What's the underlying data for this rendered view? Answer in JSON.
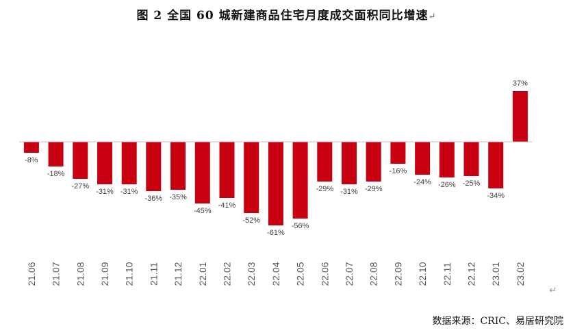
{
  "header": {
    "title": "图 2   全国 60 城新建商品住宅月度成交面积同比增速",
    "title_mark": "↵"
  },
  "footer": {
    "source": "数据来源：CRIC、易居研究院",
    "return_mark": "↵"
  },
  "colors": {
    "bar": "#C8000F",
    "axis": "#BFBFBF"
  },
  "chart_data": {
    "type": "bar",
    "categories": [
      "21.06",
      "21.07",
      "21.08",
      "21.09",
      "21.10",
      "21.11",
      "21.12",
      "22.01",
      "22.02",
      "22.03",
      "22.04",
      "22.05",
      "22.06",
      "22.07",
      "22.08",
      "22.09",
      "22.10",
      "22.11",
      "22.12",
      "23.01",
      "23.02"
    ],
    "values": [
      -8,
      -18,
      -27,
      -31,
      -31,
      -36,
      -35,
      -45,
      -41,
      -52,
      -61,
      -56,
      -29,
      -31,
      -29,
      -16,
      -24,
      -26,
      -25,
      -34,
      37
    ],
    "value_labels": [
      "-8%",
      "-18%",
      "-27%",
      "-31%",
      "-31%",
      "-36%",
      "-35%",
      "-45%",
      "-41%",
      "-52%",
      "-61%",
      "-56%",
      "-29%",
      "-31%",
      "-29%",
      "-16%",
      "-24%",
      "-26%",
      "-25%",
      "-34%",
      "37%"
    ],
    "title": "全国 60 城新建商品住宅月度成交面积同比增速",
    "xlabel": "",
    "ylabel": "",
    "ylim": [
      -70,
      45
    ],
    "grid": false,
    "legend": "none"
  }
}
